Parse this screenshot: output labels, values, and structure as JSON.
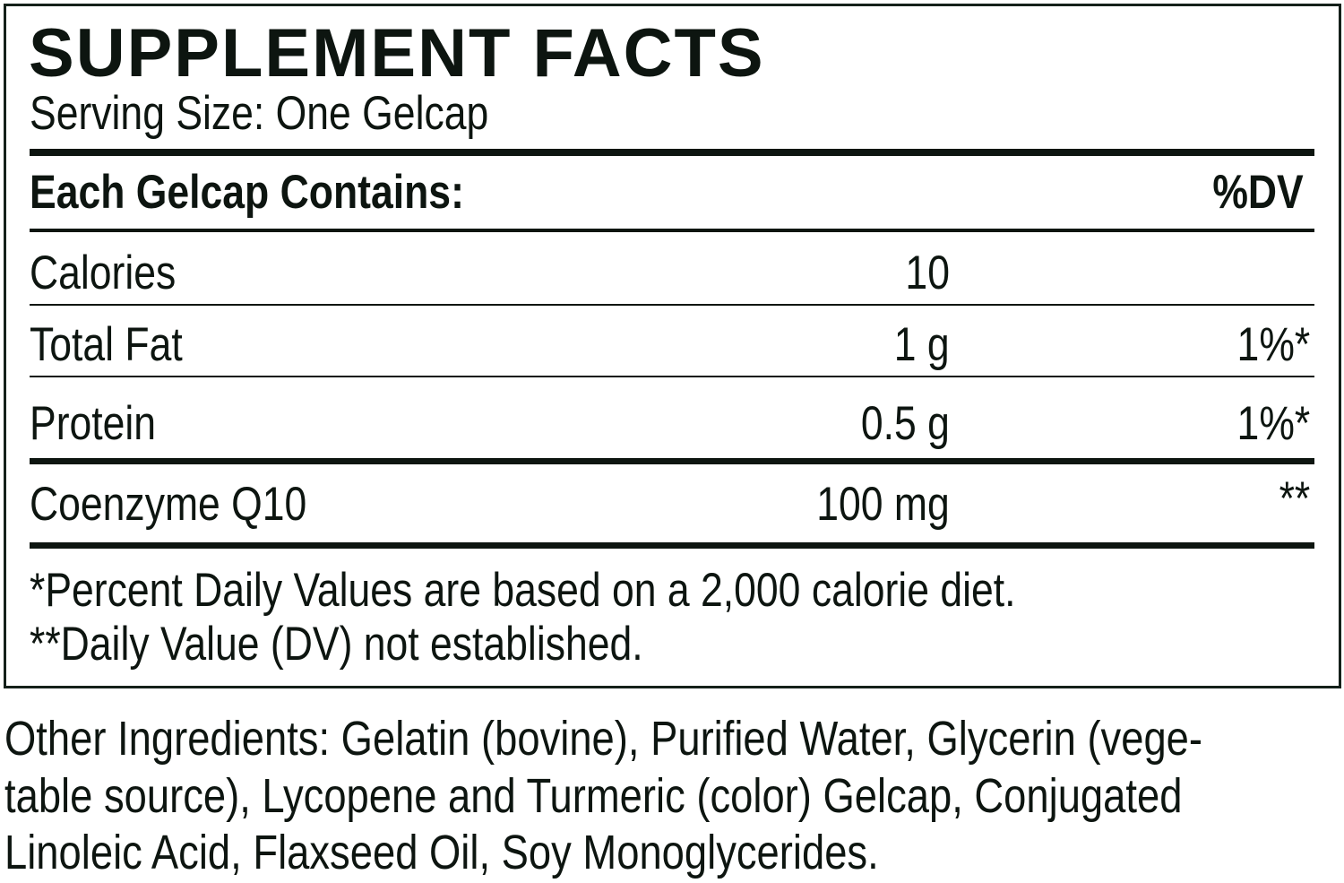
{
  "title": "SUPPLEMENT FACTS",
  "serving_size": "Serving Size: One Gelcap",
  "header": {
    "contains": "Each Gelcap Contains:",
    "dv": "%DV"
  },
  "rows": [
    {
      "name": "Calories",
      "amount": "10",
      "dv": ""
    },
    {
      "name": "Total Fat",
      "amount": "1 g",
      "dv": "1%*"
    },
    {
      "name": "Protein",
      "amount": "0.5 g",
      "dv": "1%*"
    },
    {
      "name": "Coenzyme Q10",
      "amount": "100 mg",
      "dv": "**"
    }
  ],
  "footnotes": [
    "*Percent Daily Values are based on a 2,000 calorie diet.",
    "**Daily Value (DV) not established."
  ],
  "other_ingredients": [
    "Other Ingredients: Gelatin (bovine), Purified Water, Glycerin (vege-",
    "table source), Lycopene and Turmeric (color) Gelcap, Conjugated",
    "Linoleic Acid, Flaxseed Oil, Soy Monoglycerides."
  ],
  "colors": {
    "text": "#0d1510",
    "background": "#ffffff"
  }
}
